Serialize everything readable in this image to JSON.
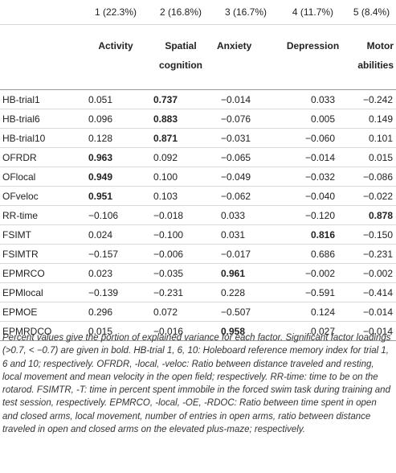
{
  "header": {
    "factors": [
      "1 (22.3%)",
      "2 (16.8%)",
      "3 (16.7%)",
      "4 (11.7%)",
      "5 (8.4%)"
    ],
    "names": [
      [
        "Activity"
      ],
      [
        "Spatial",
        "cognition"
      ],
      [
        "Anxiety"
      ],
      [
        "Depression"
      ],
      [
        "Motor",
        "abilities"
      ]
    ]
  },
  "rows": [
    {
      "label": "HB-trial1",
      "values": [
        "0.051",
        "0.737",
        "−0.014",
        "0.033",
        "−0.242"
      ],
      "bold": [
        1
      ]
    },
    {
      "label": "HB-trial6",
      "values": [
        "0.096",
        "0.883",
        "−0.076",
        "0.005",
        "0.149"
      ],
      "bold": [
        1
      ]
    },
    {
      "label": "HB-trial10",
      "values": [
        "0.128",
        "0.871",
        "−0.031",
        "−0.060",
        "0.101"
      ],
      "bold": [
        1
      ]
    },
    {
      "label": "OFRDR",
      "values": [
        "0.963",
        "0.092",
        "−0.065",
        "−0.014",
        "0.015"
      ],
      "bold": [
        0
      ]
    },
    {
      "label": "OFlocal",
      "values": [
        "0.949",
        "0.100",
        "−0.049",
        "−0.032",
        "−0.086"
      ],
      "bold": [
        0
      ]
    },
    {
      "label": "OFveloc",
      "values": [
        "0.951",
        "0.103",
        "−0.062",
        "−0.040",
        "−0.022"
      ],
      "bold": [
        0
      ]
    },
    {
      "label": "RR-time",
      "values": [
        "−0.106",
        "−0.018",
        "0.033",
        "−0.120",
        "0.878"
      ],
      "bold": [
        4
      ]
    },
    {
      "label": "FSIMT",
      "values": [
        "0.024",
        "−0.100",
        "0.031",
        "0.816",
        "−0.150"
      ],
      "bold": [
        3
      ]
    },
    {
      "label": "FSIMTR",
      "values": [
        "−0.157",
        "−0.006",
        "−0.017",
        "0.686",
        "−0.231"
      ],
      "bold": []
    },
    {
      "label": "EPMRCO",
      "values": [
        "0.023",
        "−0.035",
        "0.961",
        "−0.002",
        "−0.002"
      ],
      "bold": [
        2
      ]
    },
    {
      "label": "EPMlocal",
      "values": [
        "−0.139",
        "−0.231",
        "0.228",
        "−0.591",
        "−0.414"
      ],
      "bold": []
    },
    {
      "label": "EPMOE",
      "values": [
        "0.296",
        "0.072",
        "−0.507",
        "0.124",
        "−0.014"
      ],
      "bold": []
    },
    {
      "label": "EPMRDCO",
      "values": [
        "0.015",
        "−0.016",
        "0.958",
        "0.027",
        "−0.014"
      ],
      "bold": [
        2
      ]
    }
  ],
  "footnote": "Percent values give the portion of explained variance for each factor. Significant factor loadings (>0.7, < −0.7) are given in bold. HB-trial 1, 6, 10: Holeboard reference memory index for trial 1, 6 and 10; respectively. OFRDR, -local, -veloc: Ratio between distance traveled and resting, local movement and mean velocity in the open field; respectively. RR-time: time to be on the rotarod. FSIMTR, -T: time in percent spent immobile in the forced swim task during training and test session, respectively. EPMRCO, -local, -OE, -RDOC: Ratio between time spent in open and closed arms, local movement, number of entries in open arms, ratio between distance traveled in open and closed arms on the elevated plus-maze; respectively."
}
